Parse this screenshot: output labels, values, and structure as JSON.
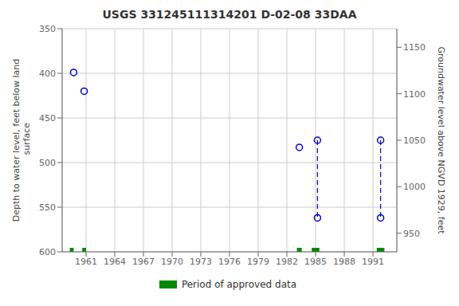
{
  "chart_data": {
    "type": "scatter",
    "title": "USGS 331245111314201 D-02-08 33DAA",
    "ylabel": "Depth to water level, feet below land\n surface",
    "y2label": "Groundwater level above NGVD 1929, feet",
    "xlim": [
      1958.5,
      1993.5
    ],
    "xticks": [
      1961,
      1964,
      1967,
      1970,
      1973,
      1976,
      1979,
      1982,
      1985,
      1988,
      1991
    ],
    "ylim": [
      600,
      350
    ],
    "yticks": [
      350,
      400,
      450,
      500,
      550,
      600
    ],
    "y2lim": [
      930,
      1170
    ],
    "y2ticks": [
      950,
      1000,
      1050,
      1100,
      1150
    ],
    "grid": true,
    "legend": "bottom",
    "series": [
      {
        "type": "scatter",
        "marker": "circle",
        "color": "#0000cc",
        "x": [
          1959.7,
          1960.8,
          1983.3,
          1985.2,
          1985.2,
          1991.8,
          1991.8
        ],
        "values": [
          399,
          420,
          483,
          475,
          562,
          475,
          562
        ]
      },
      {
        "type": "line",
        "line_style": "dashed",
        "color": "#0000cc",
        "x": [
          1985.2,
          1985.2
        ],
        "values": [
          475,
          562
        ]
      },
      {
        "type": "line",
        "line_style": "dashed",
        "color": "#0000cc",
        "x": [
          1991.8,
          1991.8
        ],
        "values": [
          475,
          562
        ]
      },
      {
        "type": "bar",
        "name": "Period of approved data",
        "color": "#008800",
        "x": [
          1959.5,
          1960.8,
          1983.3,
          1985.0,
          1991.8
        ],
        "widths": [
          0.4,
          0.4,
          0.5,
          0.8,
          0.8
        ]
      }
    ]
  }
}
